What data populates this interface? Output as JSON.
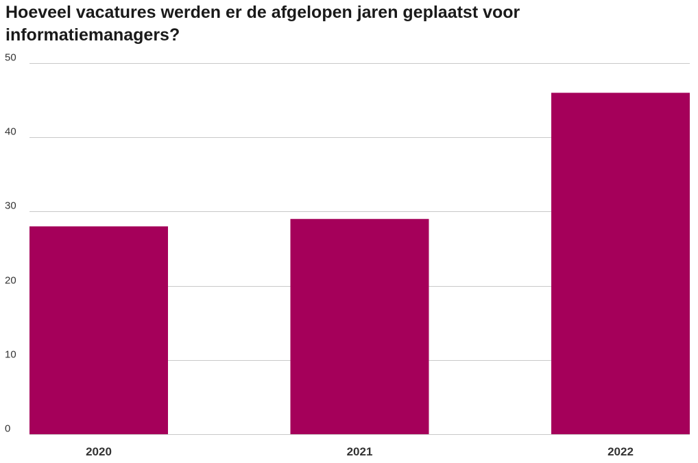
{
  "chart_data": {
    "type": "bar",
    "title": "Hoeveel vacatures werden er de afgelopen jaren geplaatst voor informatiemanagers?",
    "categories": [
      "2020",
      "2021",
      "2022"
    ],
    "values": [
      28,
      29,
      46
    ],
    "xlabel": "",
    "ylabel": "",
    "ylim": [
      0,
      50
    ],
    "yticks": [
      0,
      10,
      20,
      30,
      40,
      50
    ],
    "grid": true,
    "legend": "none",
    "bar_color": "#a5005a"
  }
}
